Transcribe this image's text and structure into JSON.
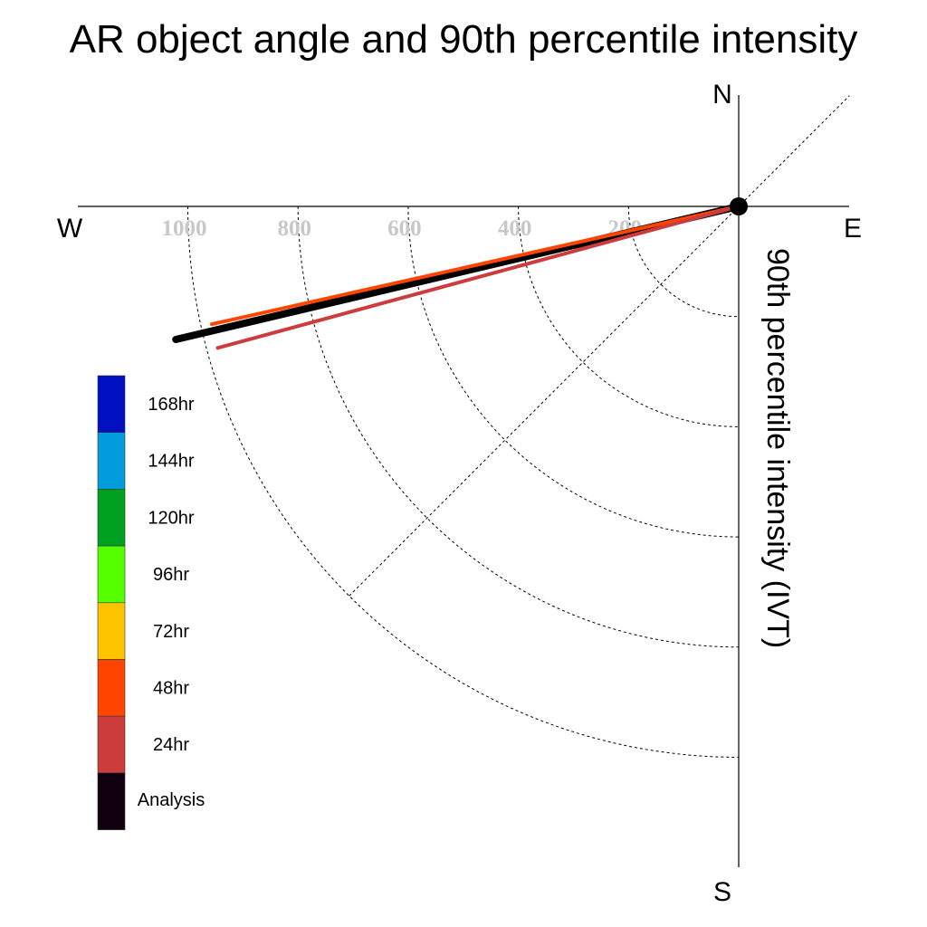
{
  "chart_data": {
    "type": "polar-quadrant",
    "title": "AR object angle and 90th percentile intensity",
    "ylabel": "90th percentile intensity (IVT)",
    "directions": {
      "n": "N",
      "s": "S",
      "e": "E",
      "w": "W"
    },
    "radial_ticks": [
      "200",
      "400",
      "600",
      "800",
      "1000"
    ],
    "radial_tick_values": [
      200,
      400,
      600,
      800,
      1000
    ],
    "rlim": [
      0,
      1200
    ],
    "grid": true,
    "legend": {
      "placement": "left",
      "entries": [
        {
          "label": "168hr",
          "color": "#0010c0"
        },
        {
          "label": "144hr",
          "color": "#009cdc"
        },
        {
          "label": "120hr",
          "color": "#00a020"
        },
        {
          "label": "96hr",
          "color": "#55ff00"
        },
        {
          "label": "72hr",
          "color": "#ffc400"
        },
        {
          "label": "48hr",
          "color": "#ff4400"
        },
        {
          "label": "24hr",
          "color": "#cc3c3c"
        },
        {
          "label": "Analysis",
          "color": "#100010"
        }
      ]
    },
    "series": [
      {
        "label": "Analysis",
        "color": "#000000",
        "angle_deg": 193.3,
        "intensity": 1050,
        "weight": "heavy"
      },
      {
        "label": "48hr",
        "color": "#ff4400",
        "angle_deg": 192.6,
        "intensity": 980,
        "weight": "light"
      },
      {
        "label": "24hr",
        "color": "#cc3c3c",
        "angle_deg": 195.2,
        "intensity": 980,
        "weight": "light"
      }
    ]
  }
}
